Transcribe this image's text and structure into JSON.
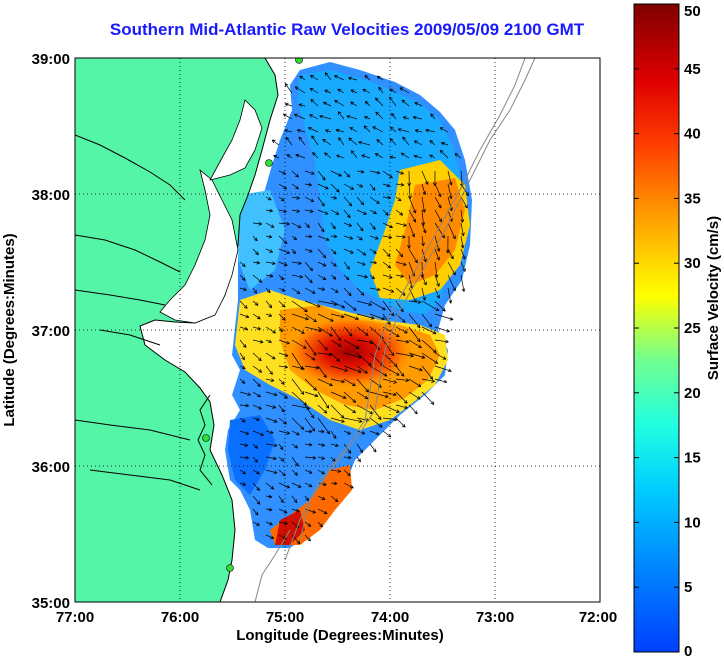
{
  "title": "Southern Mid-Atlantic Raw Velocities 2009/05/09 2100 GMT",
  "xlabel": "Longitude (Degrees:Minutes)",
  "ylabel": "Latitude (Degrees:Minutes)",
  "x_ticks": [
    "77:00",
    "76:00",
    "75:00",
    "74:00",
    "73:00",
    "72:00"
  ],
  "y_ticks": [
    "39:00",
    "38:00",
    "37:00",
    "36:00",
    "35:00"
  ],
  "colorbar": {
    "label": "Surface Velocity (cm/s)",
    "ticks": [
      "0",
      "5",
      "10",
      "15",
      "20",
      "25",
      "30",
      "35",
      "40",
      "45",
      "50"
    ],
    "range": [
      0,
      50
    ]
  },
  "colors": {
    "land": "#55f5a8",
    "ocean": "#ffffff",
    "title": "#1a1aff",
    "station": "#33dd33"
  }
}
